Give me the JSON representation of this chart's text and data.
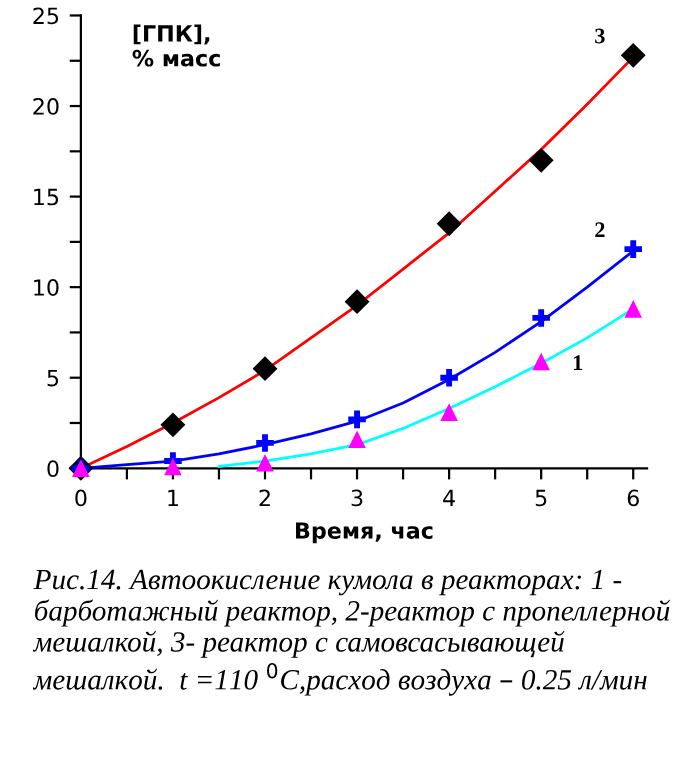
{
  "chart_data": {
    "type": "line",
    "ylabel": "[ГПК],\n% масс",
    "xlabel": "Время, час",
    "xlim": [
      0,
      6.15
    ],
    "ylim": [
      0,
      25
    ],
    "xticks": [
      0,
      {
        "value": 0.5,
        "label": null
      },
      1,
      {
        "value": 1.5,
        "label": null
      },
      2,
      {
        "value": 2.5,
        "label": null
      },
      3,
      {
        "value": 3.5,
        "label": null
      },
      4,
      {
        "value": 4.5,
        "label": null
      },
      5,
      {
        "value": 5.5,
        "label": null
      },
      6
    ],
    "yticks": [
      0,
      {
        "value": 2.5,
        "label": null
      },
      5,
      {
        "value": 7.5,
        "label": null
      },
      10,
      {
        "value": 12.5,
        "label": null
      },
      15,
      {
        "value": 17.5,
        "label": null
      },
      20,
      {
        "value": 22.5,
        "label": null
      },
      25
    ],
    "grid": false,
    "legend": false,
    "series": [
      {
        "name": "3",
        "color": "#ff0000",
        "x": [
          0,
          0.5,
          1,
          1.5,
          2,
          2.5,
          3,
          3.5,
          4,
          4.5,
          5,
          5.5,
          6
        ],
        "values": [
          0,
          1.2,
          2.5,
          3.9,
          5.4,
          7.2,
          9.0,
          11,
          13.0,
          15.3,
          17.6,
          20.1,
          22.7
        ]
      },
      {
        "name": "2",
        "color": "#0000ff",
        "x": [
          0,
          0.5,
          1,
          1.5,
          2,
          2.5,
          3,
          3.5,
          4,
          4.5,
          5,
          5.5,
          6
        ],
        "values": [
          0,
          0.2,
          0.4,
          0.8,
          1.3,
          1.9,
          2.6,
          3.6,
          4.9,
          6.4,
          8.1,
          10,
          12.0
        ]
      },
      {
        "name": "1",
        "color": "#00ffff",
        "x": [
          1.5,
          2,
          2.5,
          3,
          3.5,
          4,
          4.5,
          5,
          5.5,
          6
        ],
        "values": [
          0.1,
          0.4,
          0.8,
          1.3,
          2.2,
          3.3,
          4.5,
          5.8,
          7.2,
          8.8
        ]
      },
      {
        "type": "scatter",
        "color": "#000000",
        "marker": "diamond",
        "x": [
          0,
          1,
          2,
          3,
          4,
          5,
          6
        ],
        "values": [
          0,
          2.4,
          5.5,
          9.2,
          13.5,
          17,
          22.8
        ]
      },
      {
        "type": "scatter",
        "color": "#0000ff",
        "marker": "cross",
        "x": [
          0,
          1,
          2,
          3,
          4,
          5,
          6
        ],
        "values": [
          0,
          0.4,
          1.4,
          2.7,
          5,
          8.3,
          12.1
        ]
      },
      {
        "type": "scatter",
        "color": "#ff00ff",
        "marker": "triangle",
        "x": [
          0,
          1,
          2,
          3,
          4,
          5,
          6
        ],
        "values": [
          0,
          0.1,
          0.3,
          1.6,
          3.1,
          5.9,
          8.8
        ]
      }
    ],
    "annotations": [
      "Рис.14. Автоокисление кумола в реакторах: 1 - барботажный реактор, 2-реактор с пропеллерной мешалкой, 3- реактор с самовсасывающей мешалкой.  t =110 $^{0}$С,расход воздуха – 0.25 л/мин"
    ]
  }
}
